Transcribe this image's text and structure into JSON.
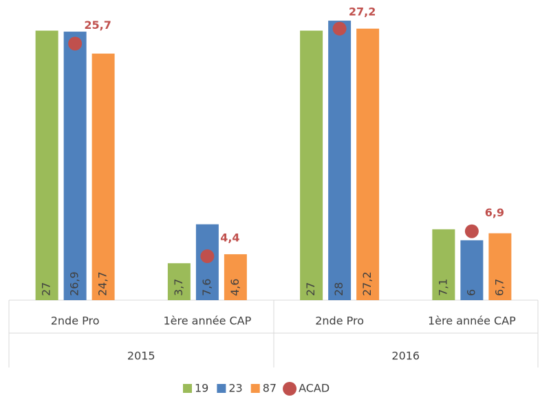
{
  "chart_data": {
    "type": "bar",
    "categories": [
      "2nde Pro",
      "1ère année CAP",
      "2nde Pro",
      "1ère année CAP"
    ],
    "category_groups": [
      "2015",
      "2016"
    ],
    "ylim": [
      0,
      30
    ],
    "series": [
      {
        "name": "19",
        "color": "#9bbb59",
        "values": [
          27,
          3.7,
          27,
          7.1
        ],
        "value_labels": [
          "27",
          "3,7",
          "27",
          "7,1"
        ]
      },
      {
        "name": "23",
        "color": "#4f81bd",
        "values": [
          26.9,
          7.6,
          28,
          6
        ],
        "value_labels": [
          "26,9",
          "7,6",
          "28",
          "6"
        ]
      },
      {
        "name": "87",
        "color": "#f79646",
        "values": [
          24.7,
          4.6,
          27.2,
          6.7
        ],
        "value_labels": [
          "24,7",
          "4,6",
          "27,2",
          "6,7"
        ]
      },
      {
        "name": "ACAD",
        "color": "#c0504d",
        "marker": "dot",
        "values": [
          25.7,
          4.4,
          27.2,
          6.9
        ],
        "value_labels": [
          "25,7",
          "4,4",
          "27,2",
          "6,9"
        ]
      }
    ]
  }
}
